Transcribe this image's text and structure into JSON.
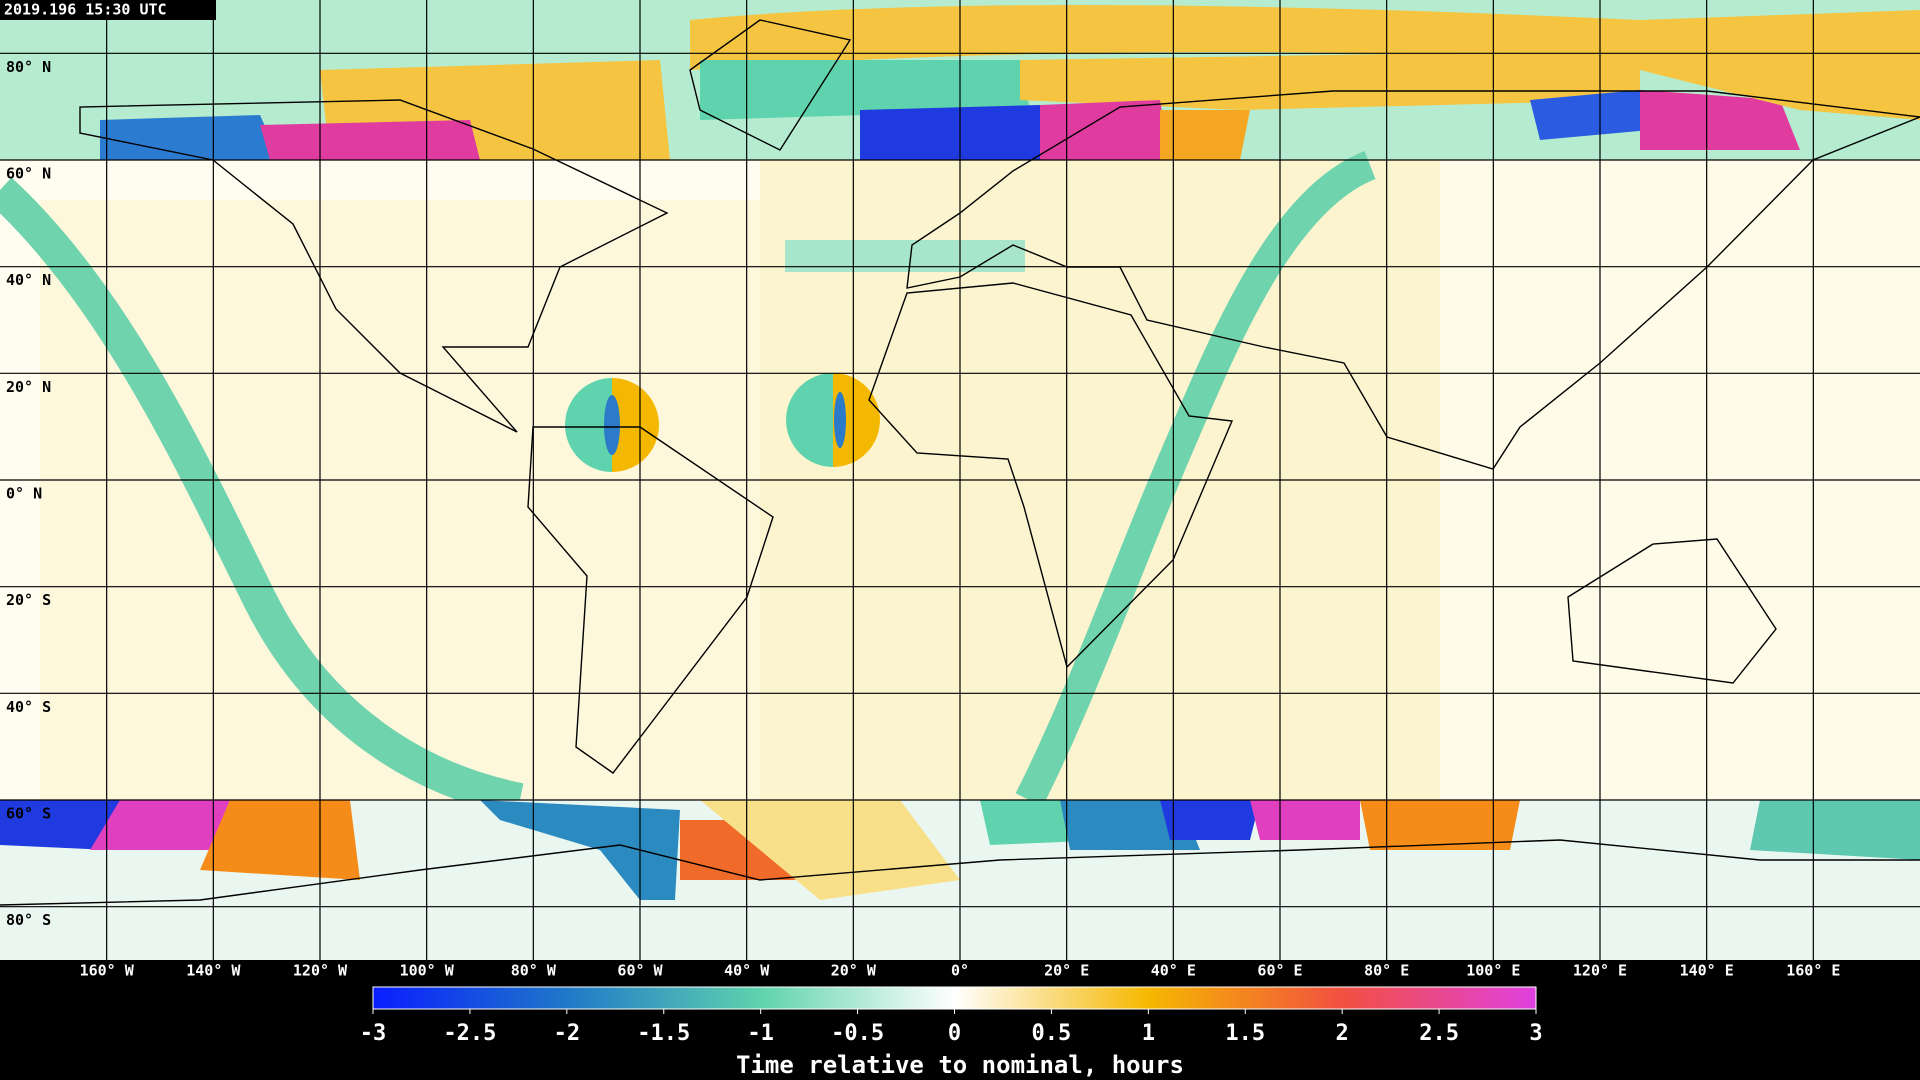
{
  "timestamp": "2019.196 15:30 UTC",
  "latitudes": [
    {
      "value": 80,
      "label": "80° N"
    },
    {
      "value": 60,
      "label": "60° N"
    },
    {
      "value": 40,
      "label": "40° N"
    },
    {
      "value": 20,
      "label": "20° N"
    },
    {
      "value": 0,
      "label": "0° N"
    },
    {
      "value": -20,
      "label": "20° S"
    },
    {
      "value": -40,
      "label": "40° S"
    },
    {
      "value": -60,
      "label": "60° S"
    },
    {
      "value": -80,
      "label": "80° S"
    }
  ],
  "longitudes": [
    {
      "value": -160,
      "label": "160° W"
    },
    {
      "value": -140,
      "label": "140° W"
    },
    {
      "value": -120,
      "label": "120° W"
    },
    {
      "value": -100,
      "label": "100° W"
    },
    {
      "value": -80,
      "label": "80° W"
    },
    {
      "value": -60,
      "label": "60° W"
    },
    {
      "value": -40,
      "label": "40° W"
    },
    {
      "value": -20,
      "label": "20° W"
    },
    {
      "value": 0,
      "label": "0°"
    },
    {
      "value": 20,
      "label": "20° E"
    },
    {
      "value": 40,
      "label": "40° E"
    },
    {
      "value": 60,
      "label": "60° E"
    },
    {
      "value": 80,
      "label": "80° E"
    },
    {
      "value": 100,
      "label": "100° E"
    },
    {
      "value": 120,
      "label": "120° E"
    },
    {
      "value": 140,
      "label": "140° E"
    },
    {
      "value": 160,
      "label": "160° E"
    }
  ],
  "colorbar": {
    "label": "Time relative to nominal, hours",
    "range": [
      -3,
      3
    ],
    "ticks": [
      -3,
      -2.5,
      -2,
      -1.5,
      -1,
      -0.5,
      0,
      0.5,
      1,
      1.5,
      2,
      2.5,
      3
    ],
    "colors": [
      "#0a1eff",
      "#1f78c8",
      "#5fd3ad",
      "#ffffff",
      "#f5b800",
      "#f25040",
      "#e040e0"
    ]
  }
}
